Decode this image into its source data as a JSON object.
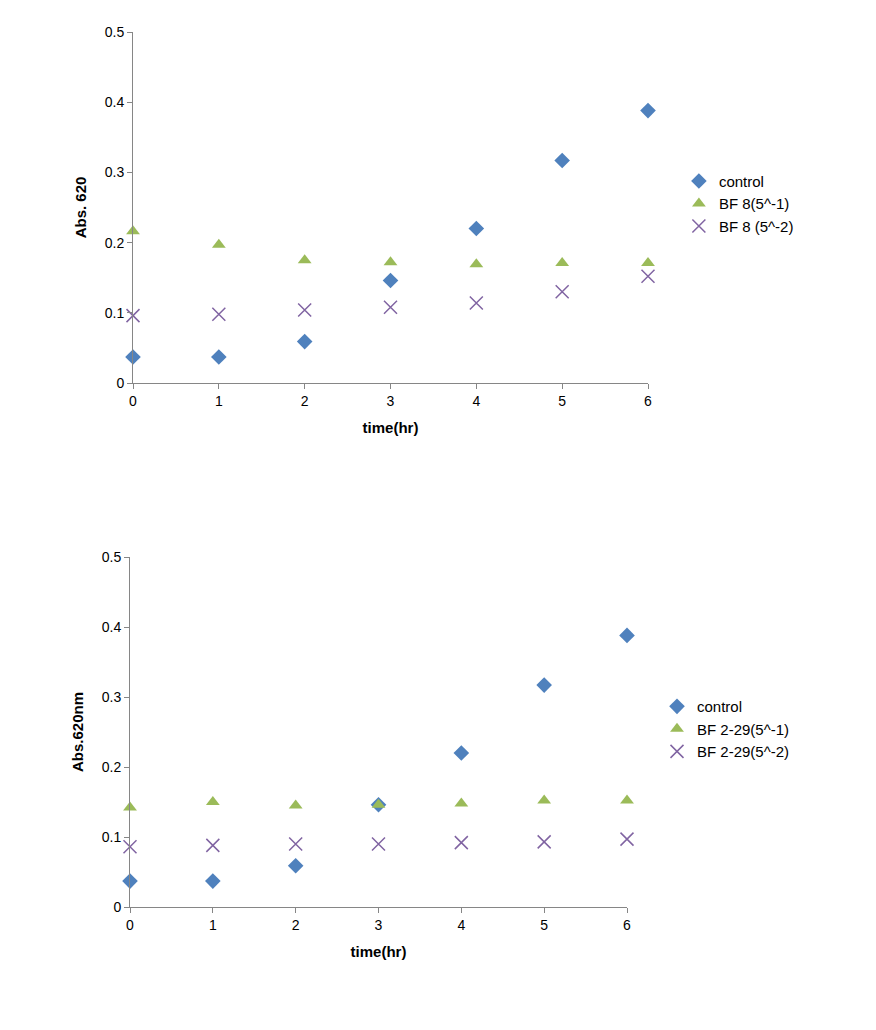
{
  "chart_data": [
    {
      "type": "scatter",
      "x_label": "time(hr)",
      "y_label": "Abs. 620",
      "x": [
        0,
        1,
        2,
        3,
        4,
        5,
        6
      ],
      "xlim": [
        0,
        6
      ],
      "xticks": [
        0,
        1,
        2,
        3,
        4,
        5,
        6
      ],
      "ylim": [
        0,
        0.5
      ],
      "yticks": [
        0,
        0.1,
        0.2,
        0.3,
        0.4,
        0.5
      ],
      "grid": false,
      "legend": "right",
      "series": [
        {
          "name": "control",
          "color": "#4f81bd",
          "marker": "diamond",
          "values": [
            0.037,
            0.037,
            0.059,
            0.146,
            0.22,
            0.317,
            0.388
          ]
        },
        {
          "name": "BF 8(5^-1)",
          "color": "#9bbb59",
          "marker": "triangle-up",
          "values": [
            0.216,
            0.197,
            0.175,
            0.172,
            0.169,
            0.171,
            0.171
          ]
        },
        {
          "name": "BF 8 (5^-2)",
          "color": "#8064a2",
          "marker": "x",
          "values": [
            0.096,
            0.098,
            0.104,
            0.108,
            0.114,
            0.13,
            0.152
          ]
        }
      ]
    },
    {
      "type": "scatter",
      "x_label": "time(hr)",
      "y_label": "Abs.620nm",
      "x": [
        0,
        1,
        2,
        3,
        4,
        5,
        6
      ],
      "xlim": [
        0,
        6
      ],
      "xticks": [
        0,
        1,
        2,
        3,
        4,
        5,
        6
      ],
      "ylim": [
        0,
        0.5
      ],
      "yticks": [
        0,
        0.1,
        0.2,
        0.3,
        0.4,
        0.5
      ],
      "grid": false,
      "legend": "right",
      "series": [
        {
          "name": "control",
          "color": "#4f81bd",
          "marker": "diamond",
          "values": [
            0.037,
            0.037,
            0.059,
            0.146,
            0.22,
            0.317,
            0.388
          ]
        },
        {
          "name": "BF 2-29(5^-1)",
          "color": "#9bbb59",
          "marker": "triangle-up",
          "values": [
            0.142,
            0.15,
            0.145,
            0.146,
            0.148,
            0.152,
            0.152
          ]
        },
        {
          "name": "BF 2-29(5^-2)",
          "color": "#8064a2",
          "marker": "x",
          "values": [
            0.086,
            0.088,
            0.09,
            0.09,
            0.092,
            0.093,
            0.097
          ]
        }
      ]
    }
  ]
}
